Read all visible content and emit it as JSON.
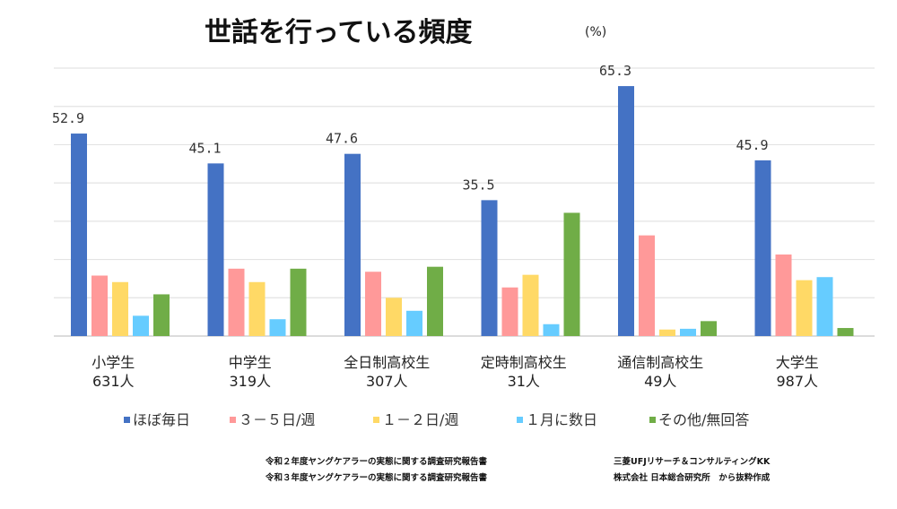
{
  "chart_data": {
    "type": "bar",
    "title": "世話を行っている頻度",
    "unit": "(%)",
    "categories": [
      "小学生",
      "中学生",
      "全日制高校生",
      "定時制高校生",
      "通信制高校生",
      "大学生"
    ],
    "category_counts": [
      "631人",
      "319人",
      "307人",
      "31人",
      "49人",
      "987人"
    ],
    "series": [
      {
        "name": "ほぼ毎日",
        "color": "#4472C4",
        "values": [
          52.9,
          45.1,
          47.6,
          35.5,
          65.3,
          45.9
        ],
        "labels": [
          "52.9",
          "45.1",
          "47.6",
          "35.5",
          "65.3",
          "45.9"
        ]
      },
      {
        "name": "３－５日/週",
        "color": "#FF9999",
        "values": [
          15.8,
          17.6,
          16.8,
          12.7,
          26.3,
          21.3
        ]
      },
      {
        "name": "１－２日/週",
        "color": "#FFD966",
        "values": [
          14.1,
          14.1,
          10.0,
          16.0,
          1.7,
          14.6
        ]
      },
      {
        "name": "１月に数日",
        "color": "#66CCFF",
        "values": [
          5.3,
          4.4,
          6.6,
          3.1,
          1.9,
          15.4
        ]
      },
      {
        "name": "その他/無回答",
        "color": "#70AD47",
        "values": [
          10.9,
          17.6,
          18.1,
          32.2,
          3.9,
          2.1
        ]
      }
    ],
    "ylim": [
      0,
      70
    ],
    "yticks_step": 10,
    "ytick_labels_shown": false,
    "grid": true,
    "legend_position": "bottom"
  },
  "source": {
    "line1_left": "令和２年度ヤングケアラーの実態に関する調査研究報告書",
    "line1_right": "三菱UFJリサーチ＆コンサルティングKK",
    "line2_left": "令和３年度ヤングケアラーの実態に関する調査研究報告書",
    "line2_right": "株式会社 日本総合研究所　から抜粋作成"
  }
}
